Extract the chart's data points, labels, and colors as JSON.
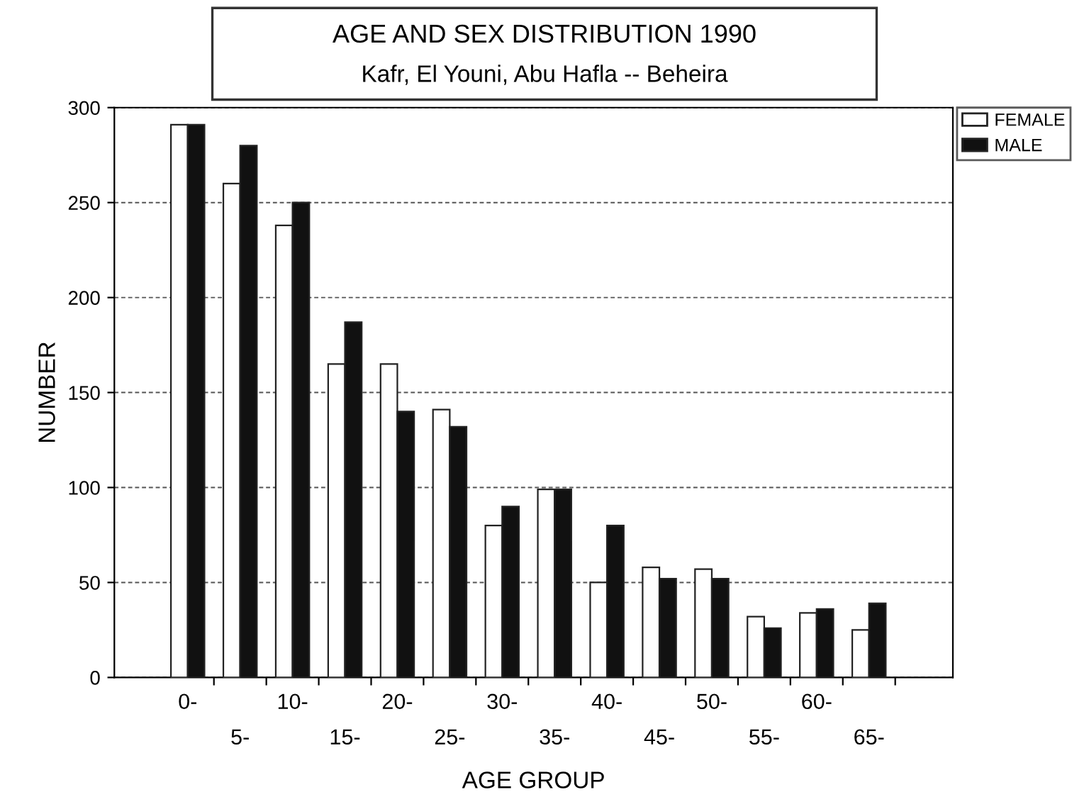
{
  "chart_data": {
    "type": "bar",
    "title": "AGE AND SEX DISTRIBUTION 1990",
    "subtitle": "Kafr, El Youni, Abu Hafla -- Beheira",
    "xlabel": "AGE GROUP",
    "ylabel": "NUMBER",
    "categories": [
      "0-",
      "5-",
      "10-",
      "15-",
      "20-",
      "25-",
      "30-",
      "35-",
      "40-",
      "45-",
      "50-",
      "55-",
      "60-",
      "65-"
    ],
    "series": [
      {
        "name": "FEMALE",
        "color": "#ffffff",
        "values": [
          291,
          260,
          238,
          165,
          165,
          141,
          80,
          99,
          50,
          58,
          57,
          32,
          34,
          25
        ]
      },
      {
        "name": "MALE",
        "color": "#111111",
        "values": [
          291,
          280,
          250,
          187,
          140,
          132,
          90,
          99,
          80,
          52,
          52,
          26,
          36,
          39
        ]
      }
    ],
    "ylim": [
      0,
      300
    ],
    "yticks": [
      0,
      50,
      100,
      150,
      200,
      250,
      300
    ],
    "grid": "y",
    "legend": "top right"
  }
}
